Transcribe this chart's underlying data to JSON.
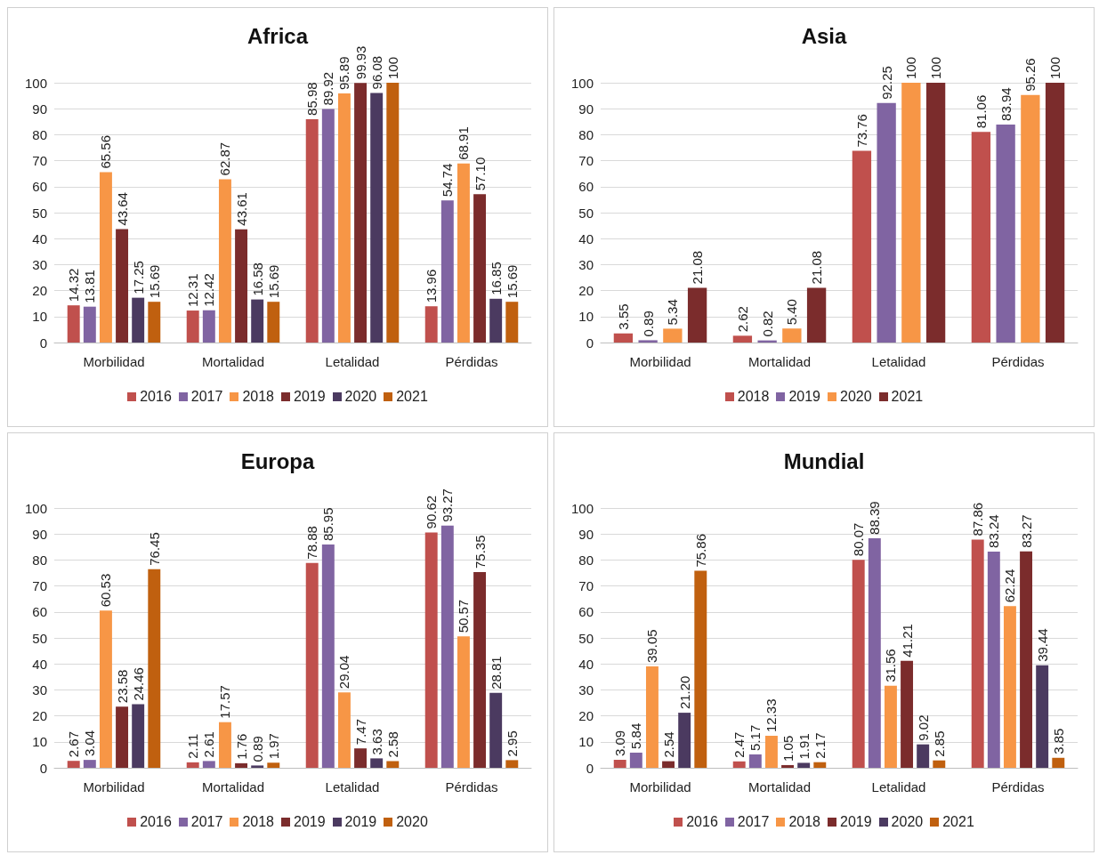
{
  "chart_data": [
    {
      "type": "bar",
      "title": "Africa",
      "categories": [
        "Morbilidad",
        "Mortalidad",
        "Letalidad",
        "Pérdidas"
      ],
      "ylim": [
        0,
        100
      ],
      "yticks": [
        0,
        10,
        20,
        30,
        40,
        50,
        60,
        70,
        80,
        90,
        100
      ],
      "grid": "y",
      "legend": "bottom",
      "series": [
        {
          "name": "2016",
          "color": "#c0504d",
          "values": [
            14.32,
            12.31,
            85.98,
            13.96
          ],
          "value_labels": [
            "14.32",
            "12.31",
            "85.98",
            "13.96"
          ]
        },
        {
          "name": "2017",
          "color": "#8064a2",
          "values": [
            13.81,
            12.42,
            89.92,
            54.74
          ],
          "value_labels": [
            "13.81",
            "12.42",
            "89.92",
            "54.74"
          ]
        },
        {
          "name": "2018",
          "color": "#f79646",
          "values": [
            65.56,
            62.87,
            95.89,
            68.91
          ],
          "value_labels": [
            "65.56",
            "62.87",
            "95.89",
            "68.91"
          ]
        },
        {
          "name": "2019",
          "color": "#7b2c2c",
          "values": [
            43.64,
            43.61,
            99.93,
            57.1
          ],
          "value_labels": [
            "43.64",
            "43.61",
            "99.93",
            "57.10"
          ]
        },
        {
          "name": "2020",
          "color": "#4b3a60",
          "values": [
            17.25,
            16.58,
            96.08,
            16.85
          ],
          "value_labels": [
            "17.25",
            "16.58",
            "96.08",
            "16.85"
          ]
        },
        {
          "name": "2021",
          "color": "#c0600f",
          "values": [
            15.69,
            15.69,
            100,
            15.69
          ],
          "value_labels": [
            "15.69",
            "15.69",
            "100",
            "15.69"
          ]
        }
      ]
    },
    {
      "type": "bar",
      "title": "Asia",
      "categories": [
        "Morbilidad",
        "Mortalidad",
        "Letalidad",
        "Pérdidas"
      ],
      "ylim": [
        0,
        100
      ],
      "yticks": [
        0,
        10,
        20,
        30,
        40,
        50,
        60,
        70,
        80,
        90,
        100
      ],
      "grid": "y",
      "legend": "bottom",
      "series": [
        {
          "name": "2018",
          "color": "#c0504d",
          "values": [
            3.55,
            2.62,
            73.76,
            81.06
          ],
          "value_labels": [
            "3.55",
            "2.62",
            "73.76",
            "81.06"
          ]
        },
        {
          "name": "2019",
          "color": "#8064a2",
          "values": [
            0.89,
            0.82,
            92.25,
            83.94
          ],
          "value_labels": [
            "0.89",
            "0.82",
            "92.25",
            "83.94"
          ]
        },
        {
          "name": "2020",
          "color": "#f79646",
          "values": [
            5.34,
            5.4,
            100,
            95.26
          ],
          "value_labels": [
            "5.34",
            "5.40",
            "100",
            "95.26"
          ]
        },
        {
          "name": "2021",
          "color": "#7b2c2c",
          "values": [
            21.08,
            21.08,
            100,
            100
          ],
          "value_labels": [
            "21.08",
            "21.08",
            "100",
            "100"
          ]
        }
      ]
    },
    {
      "type": "bar",
      "title": "Europa",
      "categories": [
        "Morbilidad",
        "Mortalidad",
        "Letalidad",
        "Pérdidas"
      ],
      "ylim": [
        0,
        100
      ],
      "yticks": [
        0,
        10,
        20,
        30,
        40,
        50,
        60,
        70,
        80,
        90,
        100
      ],
      "grid": "y",
      "legend": "bottom",
      "series": [
        {
          "name": "2016",
          "color": "#c0504d",
          "values": [
            2.67,
            2.11,
            78.88,
            90.62
          ],
          "value_labels": [
            "2.67",
            "2.11",
            "78.88",
            "90.62"
          ]
        },
        {
          "name": "2017",
          "color": "#8064a2",
          "values": [
            3.04,
            2.61,
            85.95,
            93.27
          ],
          "value_labels": [
            "3.04",
            "2.61",
            "85.95",
            "93.27"
          ]
        },
        {
          "name": "2018",
          "color": "#f79646",
          "values": [
            60.53,
            17.57,
            29.04,
            50.57
          ],
          "value_labels": [
            "60.53",
            "17.57",
            "29.04",
            "50.57"
          ]
        },
        {
          "name": "2019",
          "color": "#7b2c2c",
          "values": [
            23.58,
            1.76,
            7.47,
            75.35
          ],
          "value_labels": [
            "23.58",
            "1.76",
            "7.47",
            "75.35"
          ]
        },
        {
          "name": "2019",
          "color": "#4b3a60",
          "values": [
            24.46,
            0.89,
            3.63,
            28.81
          ],
          "value_labels": [
            "24.46",
            "0.89",
            "3.63",
            "28.81"
          ]
        },
        {
          "name": "2020",
          "color": "#c0600f",
          "values": [
            76.45,
            1.97,
            2.58,
            2.95
          ],
          "value_labels": [
            "76.45",
            "1.97",
            "2.58",
            "2.95"
          ]
        }
      ]
    },
    {
      "type": "bar",
      "title": "Mundial",
      "categories": [
        "Morbilidad",
        "Mortalidad",
        "Letalidad",
        "Pérdidas"
      ],
      "ylim": [
        0,
        100
      ],
      "yticks": [
        0,
        10,
        20,
        30,
        40,
        50,
        60,
        70,
        80,
        90,
        100
      ],
      "grid": "y",
      "legend": "bottom",
      "series": [
        {
          "name": "2016",
          "color": "#c0504d",
          "values": [
            3.09,
            2.47,
            80.07,
            87.86
          ],
          "value_labels": [
            "3.09",
            "2.47",
            "80.07",
            "87.86"
          ]
        },
        {
          "name": "2017",
          "color": "#8064a2",
          "values": [
            5.84,
            5.17,
            88.39,
            83.24
          ],
          "value_labels": [
            "5.84",
            "5.17",
            "88.39",
            "83.24"
          ]
        },
        {
          "name": "2018",
          "color": "#f79646",
          "values": [
            39.05,
            12.33,
            31.56,
            62.24
          ],
          "value_labels": [
            "39.05",
            "12.33",
            "31.56",
            "62.24"
          ]
        },
        {
          "name": "2019",
          "color": "#7b2c2c",
          "values": [
            2.54,
            1.05,
            41.21,
            83.27
          ],
          "value_labels": [
            "2.54",
            "1.05",
            "41.21",
            "83.27"
          ]
        },
        {
          "name": "2020",
          "color": "#4b3a60",
          "values": [
            21.2,
            1.91,
            9.02,
            39.44
          ],
          "value_labels": [
            "21.20",
            "1.91",
            "9.02",
            "39.44"
          ]
        },
        {
          "name": "2021",
          "color": "#c0600f",
          "values": [
            75.86,
            2.17,
            2.85,
            3.85
          ],
          "value_labels": [
            "75.86",
            "2.17",
            "2.85",
            "3.85"
          ]
        }
      ]
    }
  ]
}
